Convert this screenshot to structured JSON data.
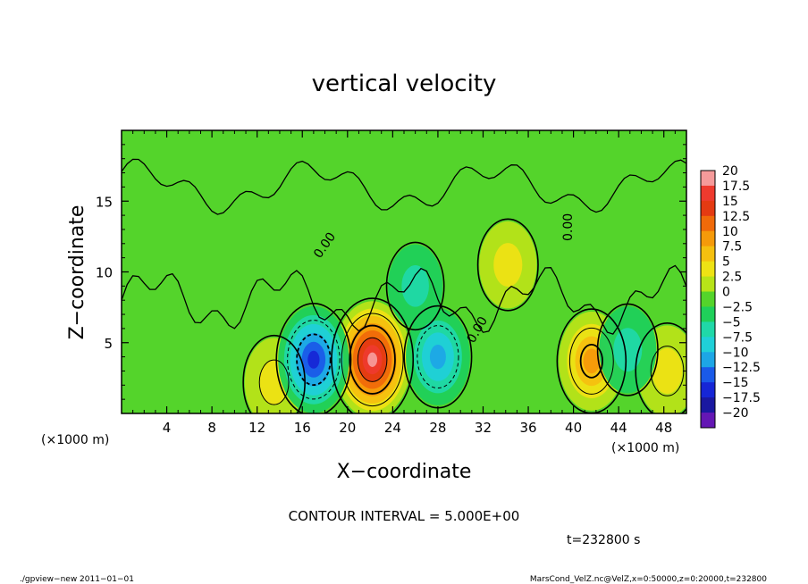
{
  "chart_data": {
    "type": "heatmap",
    "title": "vertical velocity",
    "xlabel": "X−coordinate",
    "ylabel": "Z−coordinate",
    "x_unit_label": "(×1000 m)",
    "x_unit_label_right": "(×1000 m)",
    "xlim": [
      0,
      50
    ],
    "ylim": [
      0,
      20
    ],
    "x_ticks": [
      "4",
      "8",
      "12",
      "16",
      "20",
      "24",
      "28",
      "32",
      "36",
      "40",
      "44",
      "48"
    ],
    "y_ticks": [
      "5",
      "10",
      "15"
    ],
    "contour_interval_text": "CONTOUR INTERVAL = 5.000E+00",
    "contour_labels": [
      "0.00",
      "0.00",
      "0.00"
    ],
    "time_label": "t=232800 s",
    "colorbar": {
      "labels": [
        "20",
        "17.5",
        "15",
        "12.5",
        "10",
        "7.5",
        "5",
        "2.5",
        "0",
        "−2.5",
        "−5",
        "−7.5",
        "−10",
        "−12.5",
        "−15",
        "−17.5",
        "−20"
      ],
      "colors": [
        "#f59a9a",
        "#ee3a2e",
        "#e43a12",
        "#f06a0a",
        "#f59a0a",
        "#f5c00f",
        "#eee214",
        "#b7e318",
        "#54d42b",
        "#1fd05a",
        "#20d8a8",
        "#20d0d8",
        "#1da6e6",
        "#1a5ae8",
        "#1626d6",
        "#1a18a0",
        "#6417b4"
      ]
    },
    "features": [
      {
        "kind": "updraft",
        "x": 22.2,
        "z": 3.8,
        "w": 19
      },
      {
        "kind": "updraft",
        "x": 41.6,
        "z": 3.7,
        "w": 10
      },
      {
        "kind": "updraft",
        "x": 48.3,
        "z": 3.0,
        "w": 6
      },
      {
        "kind": "updraft",
        "x": 13.5,
        "z": 2.2,
        "w": 5
      },
      {
        "kind": "updraft",
        "x": 34.2,
        "z": 10.5,
        "w": 4
      },
      {
        "kind": "downdraft",
        "x": 17.0,
        "z": 3.8,
        "w": -14
      },
      {
        "kind": "downdraft",
        "x": 28.0,
        "z": 4.0,
        "w": -9
      },
      {
        "kind": "downdraft",
        "x": 44.8,
        "z": 4.5,
        "w": -4
      },
      {
        "kind": "downdraft",
        "x": 26.0,
        "z": 9.0,
        "w": -2
      }
    ],
    "grid": false
  },
  "footer": {
    "left": "./gpview−new  2011−01−01",
    "right": "MarsCond_VelZ.nc@VelZ,x=0:50000,z=0:20000,t=232800"
  }
}
